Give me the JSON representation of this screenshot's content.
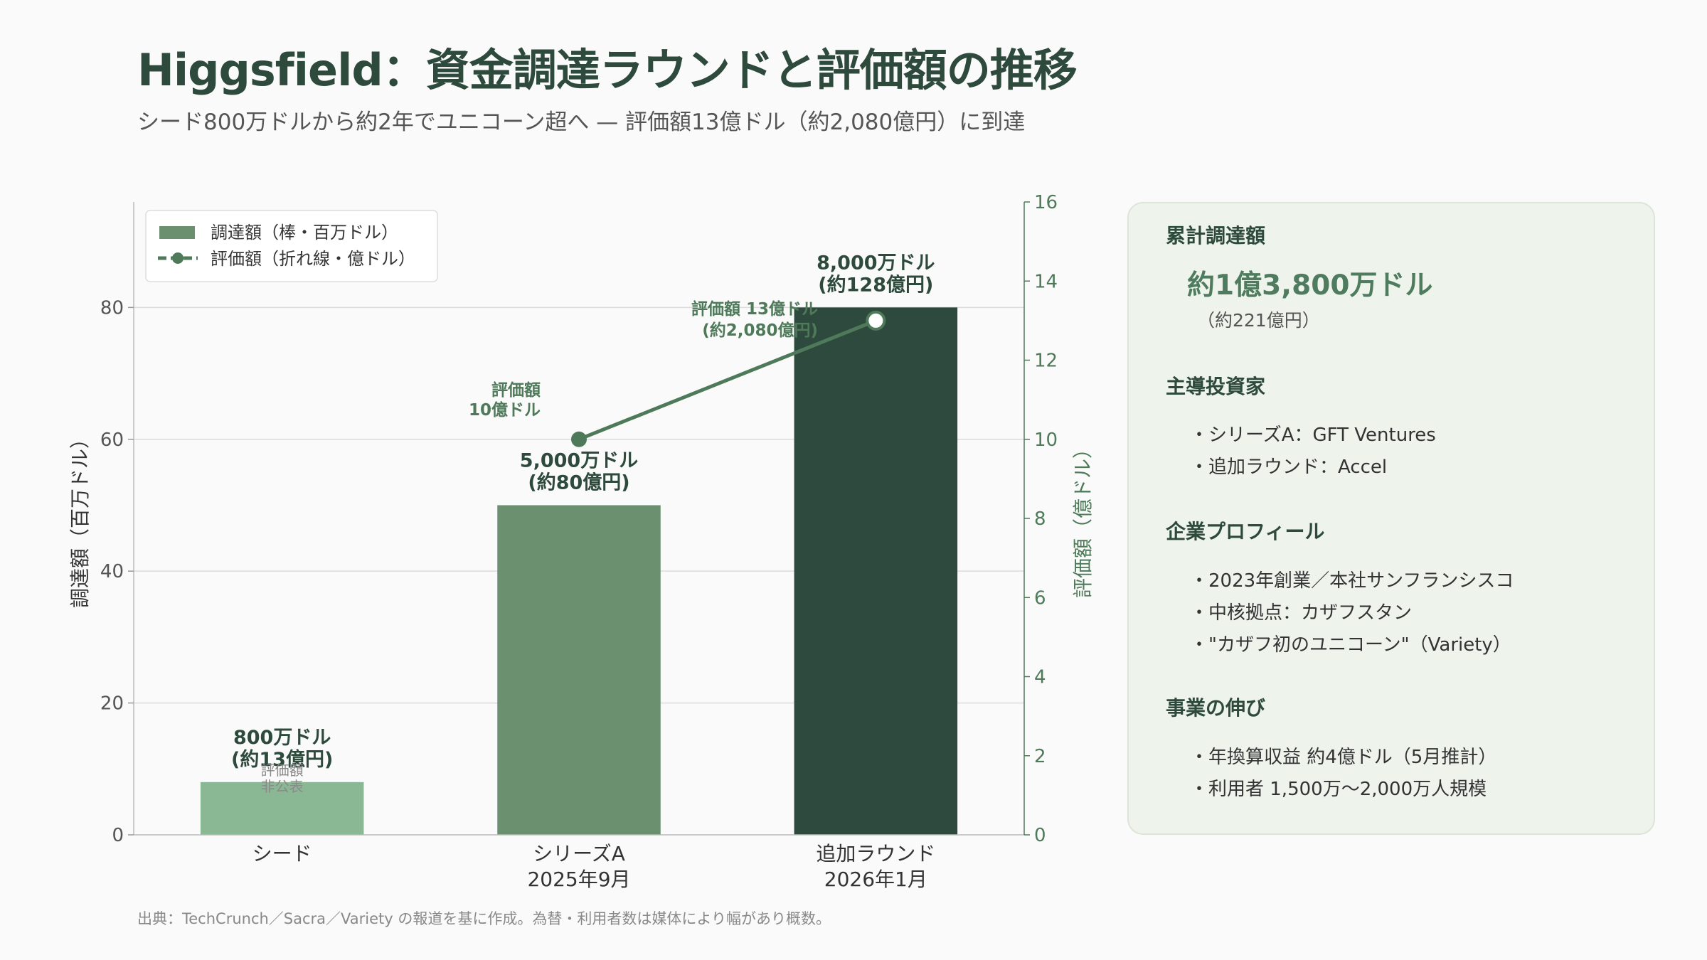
{
  "title": "Higgsfield：資金調達ラウンドと評価額の推移",
  "subtitle": "シード800万ドルから約2年でユニコーン超へ — 評価額13億ドル（約2,080億円）に到達",
  "chart_data": {
    "type": "bar",
    "categories": [
      "シード",
      "シリーズA\n2025年9月",
      "追加ラウンド\n2026年1月"
    ],
    "series": [
      {
        "name": "調達額（棒・百万ドル）",
        "type": "bar",
        "axis": "left",
        "values": [
          8,
          50,
          80
        ],
        "colors": [
          "#8ab894",
          "#6a9070",
          "#2e4a3e"
        ]
      },
      {
        "name": "評価額（折れ線・億ドル）",
        "type": "line",
        "axis": "right",
        "values": [
          null,
          10,
          13
        ],
        "color": "#4e7a5a"
      }
    ],
    "bar_labels": [
      [
        "800万ドル",
        "(約13億円)"
      ],
      [
        "5,000万ドル",
        "(約80億円)"
      ],
      [
        "8,000万ドル",
        "(約128億円)"
      ]
    ],
    "seed_valuation_note": [
      "評価額",
      "非公表"
    ],
    "line_labels": [
      [
        "評価額",
        "10億ドル"
      ],
      [
        "評価額 13億ドル",
        "(約2,080億円)"
      ]
    ],
    "ylabel": "調達額（百万ドル）",
    "y2label": "評価額（億ドル）",
    "yticks": [
      0,
      20,
      40,
      60,
      80
    ],
    "y2ticks": [
      0,
      2,
      4,
      6,
      8,
      10,
      12,
      14,
      16
    ],
    "ylim": [
      0,
      96
    ],
    "y2lim": [
      0,
      16
    ],
    "grid": true,
    "legend_position": "top-left"
  },
  "side_panel": {
    "cumulative": {
      "title": "累計調達額",
      "value": "約1億3,800万ドル",
      "sub": "（約221億円）"
    },
    "investors": {
      "title": "主導投資家",
      "items": [
        "・シリーズA：GFT Ventures",
        "・追加ラウンド：Accel"
      ]
    },
    "profile": {
      "title": "企業プロフィール",
      "items": [
        "・2023年創業／本社サンフランシスコ",
        "・中核拠点：カザフスタン",
        "・\"カザフ初のユニコーン\"（Variety）"
      ]
    },
    "growth": {
      "title": "事業の伸び",
      "items": [
        "・年換算収益 約4億ドル（5月推計）",
        "・利用者 1,500万〜2,000万人規模"
      ]
    }
  },
  "footnote": "出典：TechCrunch／Sacra／Variety の報道を基に作成。為替・利用者数は媒体により幅があり概数。"
}
